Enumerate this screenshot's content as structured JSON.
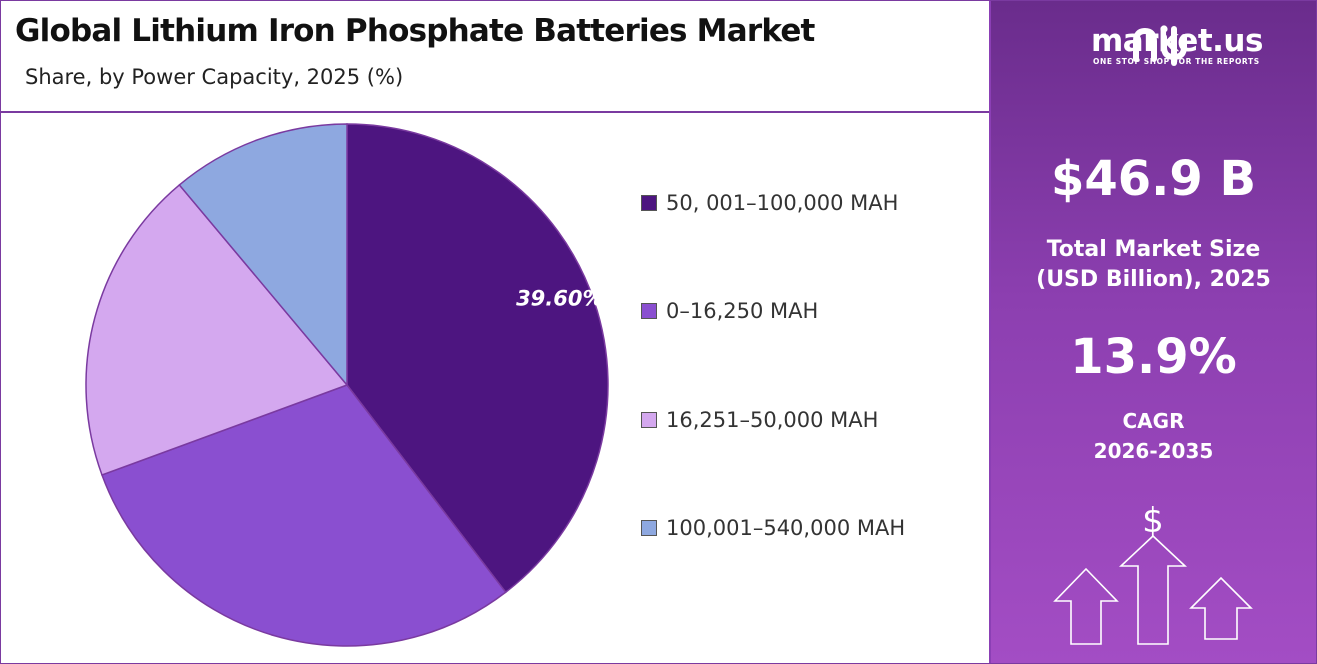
{
  "chart_data": {
    "type": "pie",
    "title": "Global Lithium Iron Phosphate Batteries Market",
    "subtitle": "Share, by Power Capacity, 2025 (%)",
    "categories": [
      "50, 001–100,000 MAH",
      "0–16,250 MAH",
      "16,251–50,000 MAH",
      "100,001–540,000 MAH"
    ],
    "values": [
      39.6,
      29.8,
      19.5,
      11.1
    ],
    "data_labels": [
      "39.60%",
      null,
      null,
      null
    ],
    "colors": [
      "#4d1580",
      "#8a4fd0",
      "#d4a8ef",
      "#8ea8e0"
    ],
    "legend_position": "right"
  },
  "panel": {
    "brand": "market.us",
    "tagline": "ONE STOP SHOP FOR THE REPORTS",
    "market_size_value": "$46.9 B",
    "market_size_label_line1": "Total Market Size",
    "market_size_label_line2": "(USD Billion), 2025",
    "cagr_value": "13.9%",
    "cagr_label_line1": "CAGR",
    "cagr_label_line2": "2026-2035",
    "icon": "dollar-growth-arrows-icon",
    "dollar_symbol": "$"
  }
}
